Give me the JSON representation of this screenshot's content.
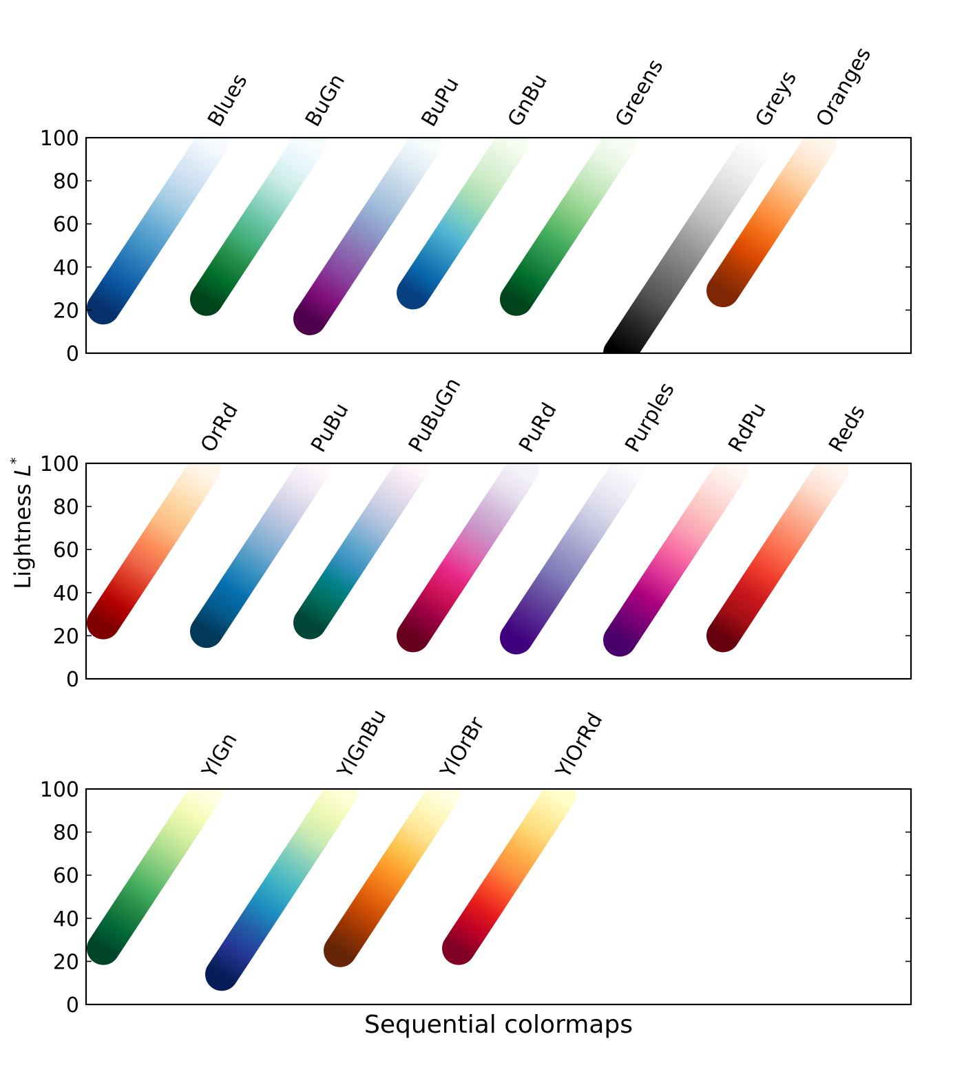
{
  "ylabel_text": "Lightness ",
  "ylabel_symbol": "L",
  "ylabel_sup": "*",
  "xlabel": "Sequential colormaps",
  "chart_data": [
    {
      "type": "line",
      "ylim": [
        0,
        100
      ],
      "yticks": [
        0,
        20,
        40,
        60,
        80,
        100
      ],
      "grid": false,
      "ylabel": "Lightness L*",
      "series": [
        {
          "name": "Blues",
          "colors": [
            "#08306b",
            "#08519c",
            "#2171b5",
            "#4292c6",
            "#6baed6",
            "#9ecae1",
            "#c6dbef",
            "#deebf7",
            "#f7fbff"
          ],
          "points": [
            [
              0,
              21
            ],
            [
              0.15,
              31
            ],
            [
              0.3,
              40
            ],
            [
              0.45,
              51
            ],
            [
              0.6,
              63
            ],
            [
              0.75,
              75
            ],
            [
              0.85,
              84
            ],
            [
              0.93,
              91
            ],
            [
              1,
              97
            ]
          ]
        },
        {
          "name": "BuGn",
          "colors": [
            "#00441b",
            "#006d2c",
            "#238b45",
            "#41ae76",
            "#66c2a4",
            "#99d8c9",
            "#ccece6",
            "#e5f5f9",
            "#f7fcfd"
          ],
          "points": [
            [
              0,
              25
            ],
            [
              0.15,
              35
            ],
            [
              0.3,
              44
            ],
            [
              0.45,
              54
            ],
            [
              0.6,
              65
            ],
            [
              0.75,
              77
            ],
            [
              0.85,
              86
            ],
            [
              0.93,
              92
            ],
            [
              1,
              97
            ]
          ]
        },
        {
          "name": "BuPu",
          "colors": [
            "#4d004b",
            "#810f7c",
            "#88419d",
            "#8c6bb1",
            "#8c96c6",
            "#9ebcda",
            "#bfd3e6",
            "#e0ecf4",
            "#f7fcfd"
          ],
          "points": [
            [
              0,
              16
            ],
            [
              0.15,
              27
            ],
            [
              0.3,
              36
            ],
            [
              0.45,
              46
            ],
            [
              0.6,
              58
            ],
            [
              0.75,
              71
            ],
            [
              0.85,
              81
            ],
            [
              0.93,
              90
            ],
            [
              1,
              97
            ]
          ]
        },
        {
          "name": "GnBu",
          "colors": [
            "#084081",
            "#0868ac",
            "#2b8cbe",
            "#4eb3d3",
            "#7bccc4",
            "#a8ddb5",
            "#ccebc5",
            "#e0f3db",
            "#f7fcf0"
          ],
          "points": [
            [
              0,
              28
            ],
            [
              0.15,
              39
            ],
            [
              0.3,
              48
            ],
            [
              0.45,
              58
            ],
            [
              0.6,
              68
            ],
            [
              0.75,
              78
            ],
            [
              0.85,
              86
            ],
            [
              0.93,
              92
            ],
            [
              1,
              97
            ]
          ]
        },
        {
          "name": "Greens",
          "colors": [
            "#00441b",
            "#006d2c",
            "#238b45",
            "#41ab5d",
            "#74c476",
            "#a1d99b",
            "#c7e9c0",
            "#e5f5e0",
            "#f7fcf5"
          ],
          "points": [
            [
              0,
              25
            ],
            [
              0.15,
              35
            ],
            [
              0.3,
              45
            ],
            [
              0.45,
              55
            ],
            [
              0.6,
              66
            ],
            [
              0.75,
              77
            ],
            [
              0.85,
              86
            ],
            [
              0.93,
              92
            ],
            [
              1,
              97
            ]
          ]
        },
        {
          "name": "Greys",
          "colors": [
            "#000000",
            "#252525",
            "#525252",
            "#737373",
            "#969696",
            "#bdbdbd",
            "#d9d9d9",
            "#f0f0f0",
            "#ffffff"
          ],
          "points": [
            [
              0,
              0
            ],
            [
              0.12,
              10
            ],
            [
              0.25,
              22
            ],
            [
              0.38,
              35
            ],
            [
              0.5,
              47
            ],
            [
              0.62,
              59
            ],
            [
              0.75,
              72
            ],
            [
              0.88,
              86
            ],
            [
              1,
              98
            ]
          ]
        },
        {
          "name": "Oranges",
          "colors": [
            "#7f2704",
            "#a63603",
            "#d94801",
            "#f16913",
            "#fd8d3c",
            "#fdae6b",
            "#fdd0a2",
            "#fee6ce",
            "#fff5eb"
          ],
          "points": [
            [
              0,
              29
            ],
            [
              0.15,
              37
            ],
            [
              0.3,
              46
            ],
            [
              0.45,
              55
            ],
            [
              0.6,
              65
            ],
            [
              0.75,
              75
            ],
            [
              0.85,
              84
            ],
            [
              0.93,
              91
            ],
            [
              1,
              97
            ]
          ]
        }
      ]
    },
    {
      "type": "line",
      "ylim": [
        0,
        100
      ],
      "yticks": [
        0,
        20,
        40,
        60,
        80,
        100
      ],
      "grid": false,
      "series": [
        {
          "name": "OrRd",
          "colors": [
            "#7f0000",
            "#b30000",
            "#d7301f",
            "#ef6548",
            "#fc8d59",
            "#fdbb84",
            "#fdd49e",
            "#fee8c8",
            "#fff7ec"
          ],
          "points": [
            [
              0,
              26
            ],
            [
              0.15,
              35
            ],
            [
              0.3,
              44
            ],
            [
              0.45,
              54
            ],
            [
              0.6,
              64
            ],
            [
              0.75,
              75
            ],
            [
              0.85,
              84
            ],
            [
              0.93,
              91
            ],
            [
              1,
              97
            ]
          ]
        },
        {
          "name": "PuBu",
          "colors": [
            "#023858",
            "#045a8d",
            "#0570b0",
            "#3690c0",
            "#74a9cf",
            "#a6bddb",
            "#d0d1e6",
            "#ece7f2",
            "#fff7fb"
          ],
          "points": [
            [
              0,
              22
            ],
            [
              0.15,
              33
            ],
            [
              0.3,
              43
            ],
            [
              0.45,
              53
            ],
            [
              0.6,
              64
            ],
            [
              0.75,
              76
            ],
            [
              0.85,
              85
            ],
            [
              0.93,
              92
            ],
            [
              1,
              98
            ]
          ]
        },
        {
          "name": "PuBuGn",
          "colors": [
            "#014636",
            "#016c59",
            "#02818a",
            "#3690c0",
            "#67a9cf",
            "#a6bddb",
            "#d0d1e6",
            "#ece2f0",
            "#fff7fb"
          ],
          "points": [
            [
              0,
              26
            ],
            [
              0.15,
              37
            ],
            [
              0.3,
              47
            ],
            [
              0.45,
              56
            ],
            [
              0.6,
              65
            ],
            [
              0.75,
              75
            ],
            [
              0.85,
              85
            ],
            [
              0.93,
              92
            ],
            [
              1,
              98
            ]
          ]
        },
        {
          "name": "PuRd",
          "colors": [
            "#67001f",
            "#980043",
            "#ce1256",
            "#e7298a",
            "#df65b0",
            "#c994c7",
            "#d4b9da",
            "#e7e1ef",
            "#f7f4f9"
          ],
          "points": [
            [
              0,
              20
            ],
            [
              0.15,
              30
            ],
            [
              0.3,
              40
            ],
            [
              0.45,
              50
            ],
            [
              0.6,
              60
            ],
            [
              0.75,
              71
            ],
            [
              0.85,
              81
            ],
            [
              0.93,
              90
            ],
            [
              1,
              97
            ]
          ]
        },
        {
          "name": "Purples",
          "colors": [
            "#3f007d",
            "#54278f",
            "#6a51a3",
            "#807dba",
            "#9e9ac8",
            "#bcbddc",
            "#dadaeb",
            "#efedf5",
            "#fcfbfd"
          ],
          "points": [
            [
              0,
              19
            ],
            [
              0.15,
              29
            ],
            [
              0.3,
              40
            ],
            [
              0.45,
              51
            ],
            [
              0.6,
              62
            ],
            [
              0.75,
              74
            ],
            [
              0.85,
              84
            ],
            [
              0.93,
              92
            ],
            [
              1,
              98
            ]
          ]
        },
        {
          "name": "RdPu",
          "colors": [
            "#49006a",
            "#7a0177",
            "#ae017e",
            "#dd3497",
            "#f768a1",
            "#fa9fb5",
            "#fcc5c0",
            "#fde0dd",
            "#fff7f3"
          ],
          "points": [
            [
              0,
              18
            ],
            [
              0.15,
              28
            ],
            [
              0.3,
              38
            ],
            [
              0.45,
              49
            ],
            [
              0.6,
              60
            ],
            [
              0.75,
              72
            ],
            [
              0.85,
              82
            ],
            [
              0.93,
              90
            ],
            [
              1,
              97
            ]
          ]
        },
        {
          "name": "Reds",
          "colors": [
            "#67000d",
            "#a50f15",
            "#cb181d",
            "#ef3b2c",
            "#fb6a4a",
            "#fc9272",
            "#fcbba1",
            "#fee0d2",
            "#fff5f0"
          ],
          "points": [
            [
              0,
              20
            ],
            [
              0.15,
              31
            ],
            [
              0.3,
              41
            ],
            [
              0.45,
              51
            ],
            [
              0.6,
              62
            ],
            [
              0.75,
              73
            ],
            [
              0.85,
              83
            ],
            [
              0.93,
              91
            ],
            [
              1,
              97
            ]
          ]
        }
      ]
    },
    {
      "type": "line",
      "ylim": [
        0,
        100
      ],
      "yticks": [
        0,
        20,
        40,
        60,
        80,
        100
      ],
      "grid": false,
      "series": [
        {
          "name": "YlGn",
          "colors": [
            "#004529",
            "#006837",
            "#238443",
            "#41ab5d",
            "#78c679",
            "#addd8e",
            "#d9f0a3",
            "#f7fcb9",
            "#ffffe5"
          ],
          "points": [
            [
              0,
              26
            ],
            [
              0.15,
              36
            ],
            [
              0.3,
              45
            ],
            [
              0.45,
              56
            ],
            [
              0.6,
              67
            ],
            [
              0.75,
              78
            ],
            [
              0.85,
              87
            ],
            [
              0.93,
              93
            ],
            [
              1,
              98
            ]
          ]
        },
        {
          "name": "YlGnBu",
          "colors": [
            "#081d58",
            "#253494",
            "#225ea8",
            "#1d91c0",
            "#41b6c4",
            "#7fcdbb",
            "#c7e9b4",
            "#edf8b1",
            "#ffffd9"
          ],
          "points": [
            [
              0,
              14
            ],
            [
              0.15,
              25
            ],
            [
              0.3,
              37
            ],
            [
              0.45,
              52
            ],
            [
              0.6,
              65
            ],
            [
              0.75,
              76
            ],
            [
              0.85,
              86
            ],
            [
              0.93,
              93
            ],
            [
              1,
              98
            ]
          ]
        },
        {
          "name": "YlOrBr",
          "colors": [
            "#662506",
            "#993404",
            "#cc4c02",
            "#ec7014",
            "#fe9929",
            "#fec44f",
            "#fee391",
            "#fff7bc",
            "#ffffe5"
          ],
          "points": [
            [
              0,
              25
            ],
            [
              0.15,
              35
            ],
            [
              0.3,
              46
            ],
            [
              0.45,
              57
            ],
            [
              0.6,
              68
            ],
            [
              0.75,
              79
            ],
            [
              0.85,
              87
            ],
            [
              0.93,
              93
            ],
            [
              1,
              98
            ]
          ]
        },
        {
          "name": "YlOrRd",
          "colors": [
            "#800026",
            "#bd0026",
            "#e31a1c",
            "#fc4e2a",
            "#fd8d3c",
            "#feb24c",
            "#fed976",
            "#ffeda0",
            "#ffffcc"
          ],
          "points": [
            [
              0,
              26
            ],
            [
              0.15,
              35
            ],
            [
              0.3,
              44
            ],
            [
              0.45,
              53
            ],
            [
              0.6,
              63
            ],
            [
              0.75,
              74
            ],
            [
              0.85,
              84
            ],
            [
              0.93,
              91
            ],
            [
              1,
              97
            ]
          ]
        }
      ]
    }
  ]
}
